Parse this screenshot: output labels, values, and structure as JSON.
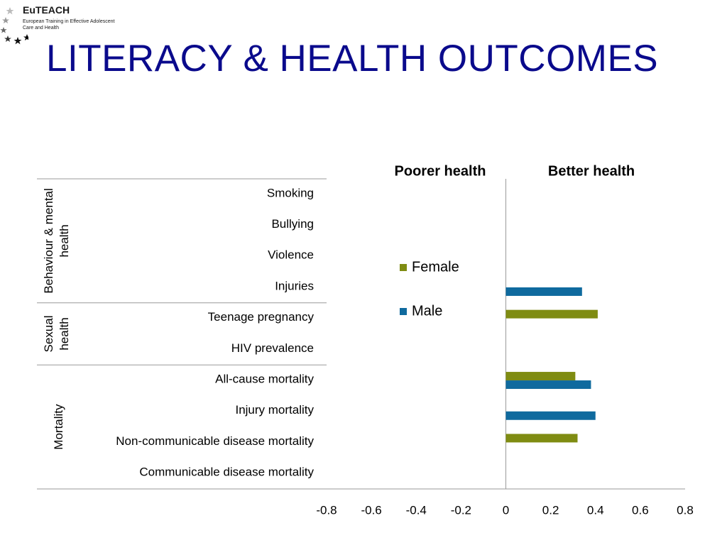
{
  "logo": {
    "title": "EuTEACH",
    "line1": "European Training in Effective Adolescent",
    "line2": "Care and Health"
  },
  "page_title": "LITERACY & HEALTH OUTCOMES",
  "colors": {
    "female": "#7f8c12",
    "male": "#0f6a9e",
    "title": "#0a0a8c"
  },
  "chart_data": {
    "type": "bar",
    "orientation": "horizontal",
    "categories": [
      "Smoking",
      "Bullying",
      "Violence",
      "Injuries",
      "Teenage pregnancy",
      "HIV prevalence",
      "All-cause mortality",
      "Injury mortality",
      "Non-communicable disease mortality",
      "Communicable disease mortality"
    ],
    "groups": [
      {
        "label": "Behaviour & mental health",
        "categories": [
          "Smoking",
          "Bullying",
          "Violence",
          "Injuries"
        ]
      },
      {
        "label": "Sexual health",
        "categories": [
          "Teenage pregnancy",
          "HIV prevalence"
        ]
      },
      {
        "label": "Mortality",
        "categories": [
          "All-cause mortality",
          "Injury mortality",
          "Non-communicable disease mortality",
          "Communicable disease mortality"
        ]
      }
    ],
    "series": [
      {
        "name": "Female",
        "values": [
          null,
          null,
          null,
          null,
          0.41,
          null,
          0.31,
          null,
          0.32,
          null
        ]
      },
      {
        "name": "Male",
        "values": [
          null,
          null,
          null,
          0.34,
          null,
          null,
          0.38,
          0.4,
          null,
          null
        ]
      }
    ],
    "xlim": [
      -0.8,
      0.8
    ],
    "xticks": [
      "-0.8",
      "-0.6",
      "-0.4",
      "-0.2",
      "0",
      "0.2",
      "0.4",
      "0.6",
      "0.8"
    ],
    "left_heading": "Poorer health",
    "right_heading": "Better health",
    "legend": "center"
  }
}
